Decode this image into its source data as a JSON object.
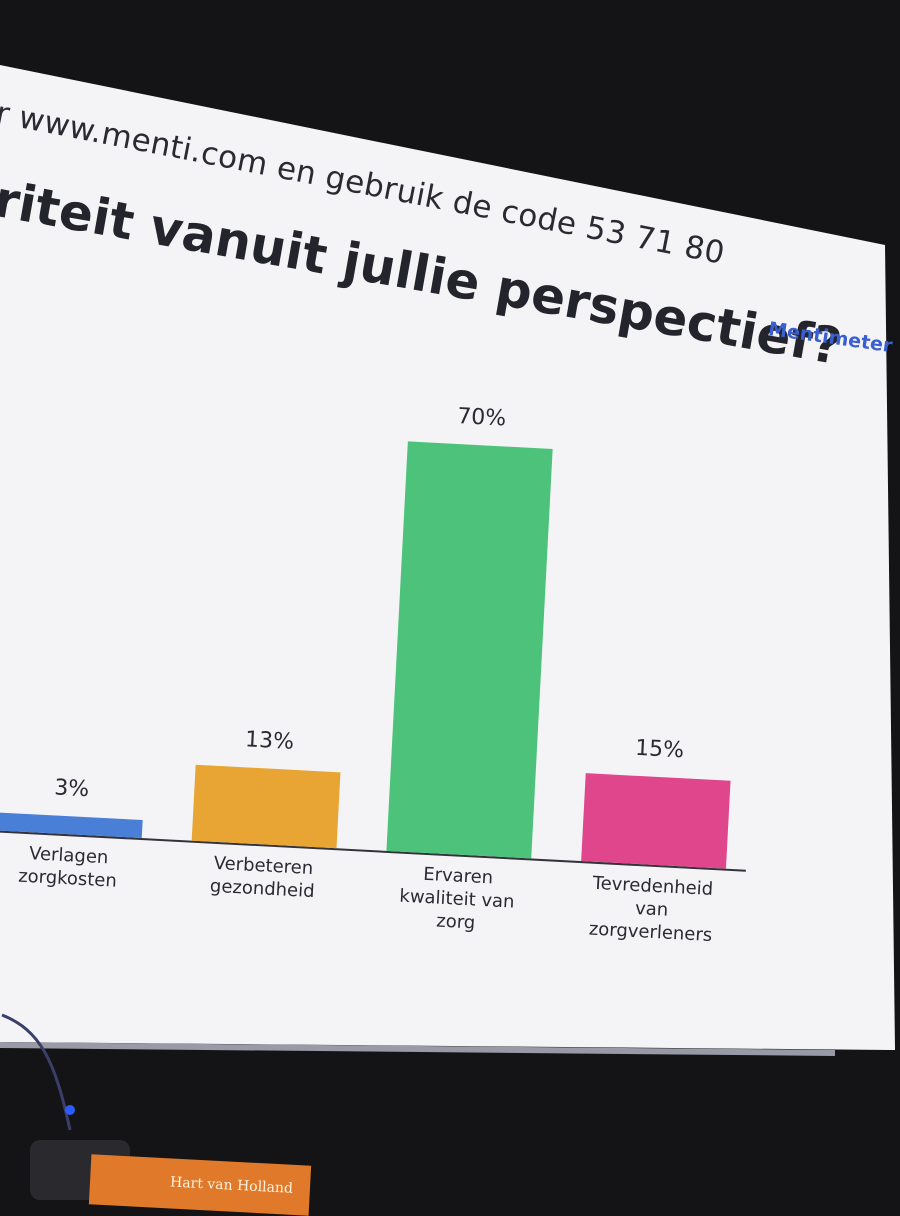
{
  "header": {
    "instruction": "r www.menti.com en gebruik de code 53 71 80",
    "brand": "Mentimeter"
  },
  "chart_data": {
    "type": "bar",
    "title": "riteit vanuit jullie perspectief?",
    "categories": [
      "Verlagen zorgkosten",
      "Verbeteren gezondheid",
      "Ervaren kwaliteit van zorg",
      "Tevredenheid van zorgverleners"
    ],
    "values": [
      3,
      13,
      70,
      15
    ],
    "value_labels": [
      "3%",
      "13%",
      "70%",
      "15%"
    ],
    "colors": [
      "#4a7fd8",
      "#e8a533",
      "#4cc27a",
      "#e0468c"
    ]
  },
  "podium": {
    "sign": "Hart van Holland"
  }
}
